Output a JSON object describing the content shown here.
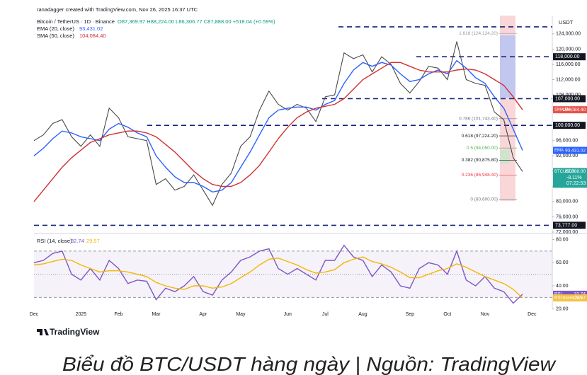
{
  "header": {
    "credit": "ranadagger created with TradingView.com, Nov 26, 2025 16:37 UTC"
  },
  "chart_data": [
    {
      "type": "line",
      "title": "Bitcoin / TetherUS · 1D · Binance",
      "quote": "O87,369.97 H88,224.00 L86,306.77 C87,888.00 +518.04 (+0.59%)",
      "unit": "USDT",
      "categories": [
        "Dec",
        null,
        null,
        null,
        null,
        "2025",
        null,
        null,
        null,
        "Feb",
        null,
        null,
        null,
        "Mar",
        null,
        null,
        null,
        null,
        "Apr",
        null,
        null,
        null,
        "May",
        null,
        null,
        null,
        null,
        "Jun",
        null,
        null,
        null,
        "Jul",
        null,
        null,
        null,
        "Aug",
        null,
        null,
        null,
        null,
        "Sep",
        null,
        null,
        null,
        "Oct",
        null,
        null,
        null,
        "Nov",
        null,
        null,
        null,
        null,
        "Dec"
      ],
      "ylim": [
        72000,
        128800
      ],
      "yticks": [
        {
          "value": 72000,
          "label": "72,000.00"
        },
        {
          "value": 76000,
          "label": "76,000.00"
        },
        {
          "value": 80000,
          "label": "80,000.00"
        },
        {
          "value": 84000,
          "label": "84,000.00"
        },
        {
          "value": 88000,
          "label": "88,000.00"
        },
        {
          "value": 92000,
          "label": "92,000.00"
        },
        {
          "value": 96000,
          "label": "96,000.00"
        },
        {
          "value": 100000,
          "label": "100,000.00"
        },
        {
          "value": 104000,
          "label": "104,000.00"
        },
        {
          "value": 108000,
          "label": "108,000.00"
        },
        {
          "value": 112000,
          "label": "112,000.00"
        },
        {
          "value": 116000,
          "label": "116,000.00"
        },
        {
          "value": 120000,
          "label": "120,000.00"
        },
        {
          "value": 124000,
          "label": "124,000.00"
        }
      ],
      "series": [
        {
          "name": "Bitcoin / TetherUS",
          "tag": "BTCUSDT",
          "last_label": "87,888.00",
          "change": "-8.11%",
          "countdown": "07:22:53",
          "color": "#4a4a4a",
          "tag_color": "#26a69a",
          "values": [
            96000,
            97500,
            100500,
            101500,
            97000,
            94500,
            97500,
            94500,
            104500,
            102000,
            97000,
            96500,
            96000,
            84500,
            86000,
            83000,
            84000,
            87000,
            83000,
            79000,
            84500,
            87500,
            94500,
            97000,
            104000,
            109000,
            105500,
            104000,
            105500,
            104500,
            101000,
            107500,
            108000,
            119000,
            117500,
            118500,
            114000,
            118000,
            116000,
            111000,
            108500,
            111500,
            115500,
            115000,
            112000,
            122000,
            112000,
            111000,
            110500,
            103500,
            101500,
            91500,
            87888,
            null
          ]
        },
        {
          "name": "EMA (20, close)",
          "tag": "EMA",
          "last_label": "93,431.02",
          "color": "#2962ff",
          "tag_color": "#2962ff",
          "values": [
            92000,
            94000,
            96500,
            98500,
            98000,
            97000,
            96500,
            96000,
            99000,
            100500,
            99500,
            98000,
            97000,
            92000,
            89000,
            86500,
            85000,
            85000,
            84000,
            82500,
            83000,
            85000,
            89000,
            93000,
            97500,
            102000,
            104000,
            104500,
            104800,
            104800,
            104000,
            105500,
            106500,
            111000,
            114500,
            116500,
            115500,
            116500,
            115800,
            113500,
            111500,
            112000,
            113500,
            114500,
            113500,
            117000,
            115000,
            112500,
            111000,
            107500,
            104500,
            99000,
            93431.02,
            null
          ]
        },
        {
          "name": "SMA (50, close)",
          "tag": "SMA:MA",
          "last_label": "104,084.40",
          "color": "#d32f2f",
          "tag_color": "#e5534b",
          "values": [
            80000,
            83000,
            86000,
            89000,
            91500,
            93500,
            95500,
            96500,
            97500,
            98000,
            98500,
            98500,
            98000,
            97000,
            95000,
            93000,
            90500,
            88000,
            86000,
            84500,
            84000,
            84000,
            85000,
            87000,
            89500,
            93000,
            96500,
            99500,
            102000,
            103500,
            104500,
            105000,
            105500,
            107000,
            109500,
            112000,
            113500,
            115000,
            116500,
            116500,
            115500,
            114500,
            114000,
            114000,
            114000,
            114500,
            114800,
            114500,
            113500,
            112000,
            110500,
            107500,
            104084.4,
            null
          ]
        }
      ],
      "levels": [
        {
          "value": 125850
        },
        {
          "value": 118000,
          "label": "118,000.00"
        },
        {
          "value": 107000,
          "label": "107,000.00"
        },
        {
          "value": 100000,
          "label": "100,000.00"
        },
        {
          "value": 73777,
          "label": "73,777.00"
        }
      ],
      "fib": [
        {
          "value": 124124.2,
          "label": "1.618 (124,124.20)",
          "color": "#9598a1"
        },
        {
          "value": 101743.4,
          "label": "0.786 (101,743.40)",
          "color": "#787b86"
        },
        {
          "value": 97224.2,
          "label": "0.618 (97,224.20)",
          "color": "#131722"
        },
        {
          "value": 94050,
          "label": "0.5 (94,050.00)",
          "color": "#4caf50"
        },
        {
          "value": 90875.8,
          "label": "0.382 (90,875.80)",
          "color": "#131722"
        },
        {
          "value": 86948.4,
          "label": "0.236 (86,948.40)",
          "color": "#f23645"
        },
        {
          "value": 80600,
          "label": "0 (80,600.00)",
          "color": "#787b86"
        }
      ]
    },
    {
      "type": "line",
      "title": "RSI (14, close)",
      "ylim": [
        18,
        84
      ],
      "yticks": [
        {
          "value": 20,
          "label": "20.00"
        },
        {
          "value": 40,
          "label": "40.00"
        },
        {
          "value": 60,
          "label": "60.00"
        },
        {
          "value": 80,
          "label": "80.00"
        }
      ],
      "levels": [
        70,
        50,
        30
      ],
      "series": [
        {
          "name": "RSI",
          "tag": "RSI",
          "last_label": "32.74",
          "color": "#7e57c2",
          "tag_color": "#7e57c2",
          "values": [
            60,
            62,
            68,
            70,
            50,
            45,
            55,
            45,
            62,
            55,
            42,
            45,
            44,
            28,
            38,
            35,
            40,
            48,
            35,
            32,
            45,
            52,
            62,
            65,
            70,
            72,
            55,
            50,
            55,
            50,
            45,
            62,
            62,
            75,
            65,
            62,
            48,
            58,
            52,
            40,
            38,
            55,
            60,
            58,
            50,
            70,
            45,
            40,
            48,
            38,
            35,
            25,
            32.74,
            null
          ]
        },
        {
          "name": "RSI-based MA",
          "tag": "RSI-based MA",
          "last_label": "29.57",
          "color": "#f5b700",
          "tag_color": "#f5c242",
          "values": [
            58,
            59,
            61,
            63,
            62,
            58,
            55,
            52,
            53,
            53,
            52,
            50,
            48,
            43,
            40,
            38,
            37,
            40,
            40,
            38,
            39,
            42,
            47,
            52,
            58,
            63,
            64,
            61,
            58,
            54,
            51,
            52,
            54,
            60,
            63,
            65,
            61,
            59,
            56,
            52,
            47,
            47,
            50,
            53,
            55,
            59,
            56,
            52,
            48,
            45,
            42,
            37,
            29.57,
            null
          ]
        }
      ]
    }
  ],
  "footer": {
    "logo": "TradingView",
    "caption": "Biểu đồ BTC/USDT hàng ngày | Nguồn: TradingView"
  }
}
